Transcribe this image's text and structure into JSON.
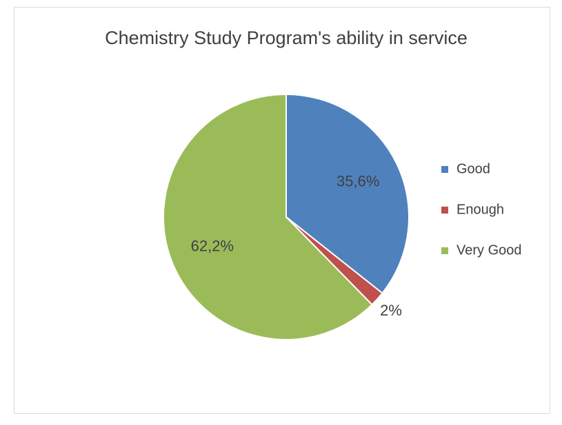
{
  "chart_data": {
    "type": "pie",
    "title": "Chemistry Study Program's ability in service",
    "categories": [
      "Good",
      "Enough",
      "Very Good"
    ],
    "values": [
      35.6,
      2,
      62.2
    ],
    "value_labels": [
      "35,6%",
      "2%",
      "62,2%"
    ],
    "colors": [
      "#4f81bd",
      "#c0504d",
      "#9bbb59"
    ],
    "legend": "right"
  }
}
